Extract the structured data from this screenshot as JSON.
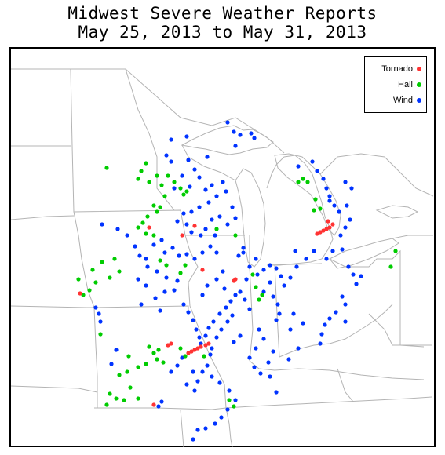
{
  "title": {
    "line1": "Midwest Severe Weather Reports",
    "line2": "May 25, 2013 to May 31, 2013"
  },
  "legend": {
    "items": [
      {
        "label": "Tornado",
        "color": "#ff3333"
      },
      {
        "label": "Hail",
        "color": "#00cc00"
      },
      {
        "label": "Wind",
        "color": "#0033ff"
      }
    ]
  },
  "colors": {
    "border_lines": "#b4b4b4",
    "frame": "#000000"
  }
}
